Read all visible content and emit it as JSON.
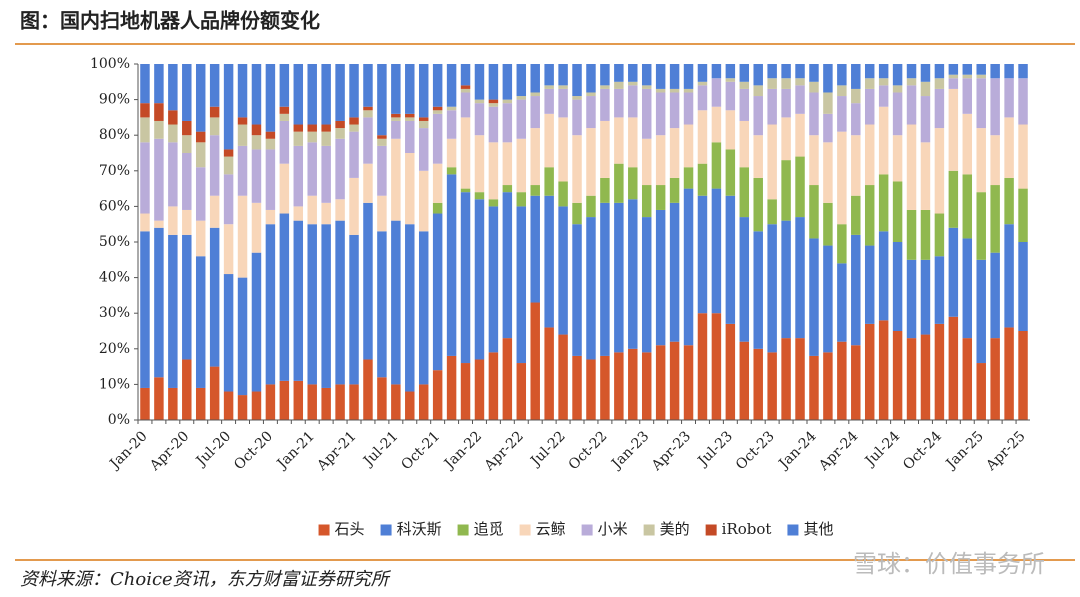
{
  "chart_data": {
    "type": "stacked_bar",
    "title": "图：国内扫地机器人品牌份额变化",
    "source": "资料来源：Choice资讯，东方财富证券研究所",
    "watermark": "雪球：价值事务所",
    "categories": [
      "Jan-20",
      null,
      null,
      "Apr-20",
      null,
      null,
      "Jul-20",
      null,
      null,
      "Oct-20",
      null,
      null,
      "Jan-21",
      null,
      null,
      "Apr-21",
      null,
      null,
      "Jul-21",
      null,
      null,
      "Oct-21",
      null,
      null,
      "Jan-22",
      null,
      null,
      "Apr-22",
      null,
      null,
      "Jul-22",
      null,
      null,
      "Oct-22",
      null,
      null,
      "Jan-23",
      null,
      null,
      "Apr-23",
      null,
      null,
      "Jul-23",
      null,
      null,
      "Oct-23",
      null,
      null,
      "Jan-24",
      null,
      null,
      "Apr-24",
      null,
      null,
      "Jul-24",
      null,
      null,
      "Oct-24",
      null,
      null,
      "Jan-25",
      null,
      null,
      "Apr-25"
    ],
    "series": [
      {
        "name": "石头",
        "color": "#d5572b",
        "values": [
          9,
          12,
          9,
          17,
          9,
          15,
          8,
          7,
          8,
          10,
          11,
          11,
          10,
          9,
          10,
          10,
          17,
          12,
          10,
          8,
          10,
          14,
          18,
          16,
          17,
          19,
          23,
          16,
          33,
          26,
          24,
          18,
          17,
          18,
          19,
          20,
          19,
          21,
          22,
          21,
          30,
          30,
          27,
          22,
          20,
          19,
          23,
          23,
          18,
          19,
          22,
          21,
          27,
          28,
          25,
          23,
          24,
          27,
          29,
          23,
          16,
          23,
          26,
          25
        ]
      },
      {
        "name": "科沃斯",
        "color": "#4f7fd6",
        "values": [
          44,
          42,
          43,
          35,
          37,
          39,
          33,
          33,
          39,
          45,
          47,
          45,
          45,
          46,
          46,
          42,
          44,
          41,
          46,
          47,
          43,
          44,
          51,
          48,
          45,
          41,
          41,
          44,
          30,
          37,
          36,
          37,
          40,
          43,
          42,
          42,
          38,
          38,
          39,
          44,
          33,
          35,
          36,
          35,
          33,
          36,
          33,
          34,
          33,
          30,
          22,
          31,
          22,
          25,
          25,
          22,
          21,
          19,
          25,
          28,
          29,
          24,
          29,
          25
        ]
      },
      {
        "name": "追觅",
        "color": "#90b84f",
        "values": [
          0,
          0,
          0,
          0,
          0,
          0,
          0,
          0,
          0,
          0,
          0,
          0,
          0,
          0,
          0,
          0,
          0,
          0,
          0,
          0,
          0,
          3,
          2,
          1,
          2,
          2,
          2,
          4,
          3,
          8,
          7,
          6,
          6,
          7,
          11,
          9,
          9,
          7,
          7,
          6,
          9,
          13,
          13,
          14,
          15,
          7,
          17,
          17,
          15,
          12,
          11,
          11,
          17,
          16,
          17,
          14,
          14,
          12,
          16,
          18,
          19,
          19,
          13,
          15
        ]
      },
      {
        "name": "云鲸",
        "color": "#f8d6b9",
        "values": [
          5,
          2,
          8,
          7,
          10,
          9,
          14,
          23,
          14,
          4,
          14,
          4,
          8,
          6,
          6,
          16,
          11,
          10,
          23,
          20,
          17,
          11,
          8,
          20,
          16,
          16,
          12,
          15,
          16,
          15,
          18,
          19,
          19,
          16,
          13,
          14,
          13,
          14,
          14,
          12,
          15,
          10,
          11,
          13,
          12,
          21,
          12,
          12,
          14,
          17,
          26,
          17,
          17,
          19,
          13,
          24,
          19,
          24,
          23,
          17,
          18,
          14,
          17,
          18
        ]
      },
      {
        "name": "小米",
        "color": "#b9acd9",
        "values": [
          20,
          23,
          18,
          16,
          15,
          17,
          14,
          14,
          15,
          17,
          12,
          17,
          15,
          16,
          17,
          13,
          13,
          14,
          5,
          9,
          12,
          14,
          8,
          7,
          9,
          10,
          11,
          11,
          9,
          7,
          8,
          10,
          9,
          9,
          8,
          9,
          14,
          12,
          10,
          9,
          7,
          8,
          8,
          9,
          11,
          10,
          8,
          8,
          12,
          8,
          10,
          9,
          10,
          6,
          12,
          11,
          13,
          11,
          3,
          10,
          14,
          16,
          11,
          13
        ]
      },
      {
        "name": "美的",
        "color": "#c9c6a2",
        "values": [
          7,
          5,
          5,
          5,
          7,
          5,
          5,
          6,
          4,
          3,
          2,
          4,
          3,
          4,
          3,
          2,
          2,
          2,
          1,
          1,
          2,
          1,
          1,
          1,
          1,
          1,
          1,
          1,
          1,
          1,
          1,
          1,
          1,
          1,
          2,
          1,
          1,
          1,
          1,
          1,
          1,
          0,
          1,
          2,
          3,
          3,
          3,
          2,
          3,
          6,
          3,
          4,
          3,
          2,
          2,
          2,
          4,
          3,
          1,
          1,
          1,
          0,
          0,
          0
        ]
      },
      {
        "name": "iRobot",
        "color": "#c44a26",
        "values": [
          4,
          5,
          4,
          4,
          3,
          3,
          2,
          2,
          3,
          2,
          2,
          2,
          2,
          2,
          2,
          2,
          1,
          1,
          1,
          1,
          1,
          1,
          0,
          1,
          0,
          1,
          0,
          0,
          0,
          0,
          0,
          0,
          0,
          0,
          0,
          0,
          0,
          0,
          0,
          0,
          0,
          0,
          0,
          0,
          0,
          0,
          0,
          0,
          0,
          0,
          0,
          0,
          0,
          0,
          0,
          0,
          0,
          0,
          0,
          0,
          0,
          0,
          0,
          0
        ]
      },
      {
        "name": "其他",
        "color": "#4f7fd6",
        "values": [
          11,
          11,
          13,
          16,
          19,
          12,
          24,
          15,
          17,
          19,
          12,
          17,
          17,
          17,
          16,
          15,
          12,
          20,
          14,
          14,
          15,
          12,
          12,
          6,
          10,
          10,
          10,
          9,
          8,
          6,
          6,
          9,
          8,
          6,
          5,
          5,
          6,
          7,
          7,
          7,
          5,
          4,
          4,
          5,
          6,
          4,
          4,
          4,
          5,
          8,
          6,
          7,
          4,
          4,
          6,
          4,
          5,
          4,
          3,
          3,
          3,
          4,
          4,
          4
        ]
      }
    ],
    "ylim": [
      0,
      100
    ],
    "yticks": [
      {
        "value": 0,
        "label": "0%"
      },
      {
        "value": 10,
        "label": "10%"
      },
      {
        "value": 20,
        "label": "20%"
      },
      {
        "value": 30,
        "label": "30%"
      },
      {
        "value": 40,
        "label": "40%"
      },
      {
        "value": 50,
        "label": "50%"
      },
      {
        "value": 60,
        "label": "60%"
      },
      {
        "value": 70,
        "label": "70%"
      },
      {
        "value": 80,
        "label": "80%"
      },
      {
        "value": 90,
        "label": "90%"
      },
      {
        "value": 100,
        "label": "100%"
      }
    ],
    "legend": "bottom"
  }
}
